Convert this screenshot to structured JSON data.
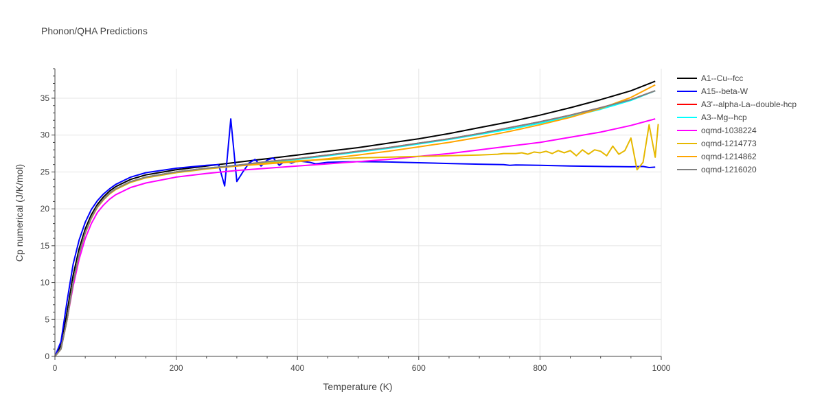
{
  "chart_data": {
    "type": "line",
    "title": "Phonon/QHA Predictions",
    "xlabel": "Temperature (K)",
    "ylabel": "Cp numerical (J/K/mol)",
    "xlim": [
      0,
      1000
    ],
    "ylim": [
      0,
      39
    ],
    "x_ticks": [
      0,
      200,
      400,
      600,
      800,
      1000
    ],
    "y_ticks": [
      0,
      5,
      10,
      15,
      20,
      25,
      30,
      35
    ],
    "grid": true,
    "legend_position": "right",
    "series": [
      {
        "name": "A1--Cu--fcc",
        "color": "#000000",
        "points": [
          [
            0,
            0
          ],
          [
            10,
            1.5
          ],
          [
            20,
            6
          ],
          [
            30,
            11
          ],
          [
            40,
            14.6
          ],
          [
            50,
            17.3
          ],
          [
            60,
            19.2
          ],
          [
            70,
            20.6
          ],
          [
            80,
            21.6
          ],
          [
            90,
            22.4
          ],
          [
            100,
            23.0
          ],
          [
            125,
            24.0
          ],
          [
            150,
            24.6
          ],
          [
            200,
            25.3
          ],
          [
            250,
            25.8
          ],
          [
            300,
            26.3
          ],
          [
            350,
            26.8
          ],
          [
            400,
            27.3
          ],
          [
            450,
            27.8
          ],
          [
            500,
            28.3
          ],
          [
            550,
            28.9
          ],
          [
            600,
            29.5
          ],
          [
            650,
            30.2
          ],
          [
            700,
            31.0
          ],
          [
            750,
            31.8
          ],
          [
            800,
            32.7
          ],
          [
            850,
            33.7
          ],
          [
            900,
            34.8
          ],
          [
            950,
            36.0
          ],
          [
            990,
            37.3
          ]
        ]
      },
      {
        "name": "A15--beta-W",
        "color": "#0000ff",
        "points": [
          [
            0,
            0
          ],
          [
            10,
            2
          ],
          [
            20,
            7.5
          ],
          [
            30,
            12.5
          ],
          [
            40,
            15.8
          ],
          [
            50,
            18.2
          ],
          [
            60,
            19.9
          ],
          [
            70,
            21.1
          ],
          [
            80,
            22.0
          ],
          [
            90,
            22.7
          ],
          [
            100,
            23.3
          ],
          [
            125,
            24.3
          ],
          [
            150,
            24.9
          ],
          [
            200,
            25.5
          ],
          [
            250,
            25.9
          ],
          [
            270,
            26.0
          ],
          [
            280,
            23.1
          ],
          [
            290,
            32.2
          ],
          [
            300,
            23.7
          ],
          [
            310,
            25.0
          ],
          [
            320,
            26.2
          ],
          [
            330,
            26.7
          ],
          [
            340,
            25.8
          ],
          [
            350,
            26.6
          ],
          [
            360,
            26.9
          ],
          [
            370,
            25.9
          ],
          [
            380,
            26.5
          ],
          [
            390,
            26.2
          ],
          [
            400,
            26.5
          ],
          [
            420,
            26.3
          ],
          [
            430,
            26.1
          ],
          [
            450,
            26.3
          ],
          [
            500,
            26.4
          ],
          [
            550,
            26.35
          ],
          [
            600,
            26.25
          ],
          [
            650,
            26.15
          ],
          [
            700,
            26.05
          ],
          [
            740,
            26.0
          ],
          [
            750,
            25.9
          ],
          [
            760,
            25.95
          ],
          [
            800,
            25.9
          ],
          [
            850,
            25.8
          ],
          [
            900,
            25.75
          ],
          [
            950,
            25.7
          ],
          [
            970,
            25.75
          ],
          [
            980,
            25.6
          ],
          [
            990,
            25.65
          ]
        ]
      },
      {
        "name": "A3'--alpha-La--double-hcp",
        "color": "#ff0000",
        "points": [
          [
            0,
            0
          ],
          [
            10,
            1
          ],
          [
            20,
            5
          ],
          [
            30,
            10
          ],
          [
            40,
            13.9
          ],
          [
            50,
            16.8
          ],
          [
            60,
            18.8
          ],
          [
            70,
            20.3
          ],
          [
            80,
            21.3
          ],
          [
            90,
            22.1
          ],
          [
            100,
            22.7
          ],
          [
            125,
            23.7
          ],
          [
            150,
            24.3
          ],
          [
            200,
            25.0
          ],
          [
            250,
            25.5
          ],
          [
            300,
            25.9
          ],
          [
            350,
            26.4
          ],
          [
            400,
            26.8
          ],
          [
            450,
            27.3
          ],
          [
            500,
            27.8
          ],
          [
            550,
            28.3
          ],
          [
            600,
            28.9
          ],
          [
            650,
            29.5
          ],
          [
            700,
            30.2
          ],
          [
            750,
            31.0
          ],
          [
            800,
            31.8
          ],
          [
            850,
            32.7
          ],
          [
            900,
            33.7
          ],
          [
            950,
            34.8
          ],
          [
            990,
            36.0
          ]
        ]
      },
      {
        "name": "A3--Mg--hcp",
        "color": "#00ffff",
        "points": [
          [
            0,
            0
          ],
          [
            10,
            1
          ],
          [
            20,
            5
          ],
          [
            30,
            10
          ],
          [
            40,
            13.9
          ],
          [
            50,
            16.8
          ],
          [
            60,
            18.8
          ],
          [
            70,
            20.3
          ],
          [
            80,
            21.3
          ],
          [
            90,
            22.1
          ],
          [
            100,
            22.7
          ],
          [
            125,
            23.7
          ],
          [
            150,
            24.3
          ],
          [
            200,
            25.0
          ],
          [
            250,
            25.5
          ],
          [
            300,
            25.9
          ],
          [
            350,
            26.3
          ],
          [
            400,
            26.7
          ],
          [
            450,
            27.2
          ],
          [
            500,
            27.7
          ],
          [
            550,
            28.2
          ],
          [
            600,
            28.8
          ],
          [
            650,
            29.4
          ],
          [
            700,
            30.1
          ],
          [
            750,
            30.8
          ],
          [
            800,
            31.6
          ],
          [
            850,
            32.5
          ],
          [
            900,
            33.5
          ],
          [
            950,
            34.7
          ],
          [
            990,
            36.0
          ]
        ]
      },
      {
        "name": "oqmd-1038224",
        "color": "#ff00ff",
        "points": [
          [
            0,
            0
          ],
          [
            10,
            1
          ],
          [
            20,
            5
          ],
          [
            30,
            9.5
          ],
          [
            40,
            13.2
          ],
          [
            50,
            16.0
          ],
          [
            60,
            18.0
          ],
          [
            70,
            19.5
          ],
          [
            80,
            20.5
          ],
          [
            90,
            21.3
          ],
          [
            100,
            21.9
          ],
          [
            125,
            22.9
          ],
          [
            150,
            23.5
          ],
          [
            200,
            24.3
          ],
          [
            250,
            24.8
          ],
          [
            300,
            25.2
          ],
          [
            350,
            25.5
          ],
          [
            400,
            25.8
          ],
          [
            450,
            26.1
          ],
          [
            500,
            26.4
          ],
          [
            550,
            26.7
          ],
          [
            600,
            27.1
          ],
          [
            650,
            27.5
          ],
          [
            700,
            28.0
          ],
          [
            750,
            28.5
          ],
          [
            800,
            29.0
          ],
          [
            850,
            29.7
          ],
          [
            900,
            30.4
          ],
          [
            950,
            31.3
          ],
          [
            990,
            32.2
          ]
        ]
      },
      {
        "name": "oqmd-1214773",
        "color": "#e6b800",
        "points": [
          [
            0,
            0
          ],
          [
            10,
            1
          ],
          [
            20,
            5
          ],
          [
            30,
            10
          ],
          [
            40,
            13.9
          ],
          [
            50,
            16.7
          ],
          [
            60,
            18.7
          ],
          [
            70,
            20.2
          ],
          [
            80,
            21.2
          ],
          [
            90,
            22.0
          ],
          [
            100,
            22.6
          ],
          [
            125,
            23.6
          ],
          [
            150,
            24.2
          ],
          [
            200,
            24.9
          ],
          [
            250,
            25.4
          ],
          [
            300,
            25.8
          ],
          [
            350,
            26.2
          ],
          [
            400,
            26.5
          ],
          [
            450,
            26.7
          ],
          [
            500,
            26.9
          ],
          [
            550,
            27.0
          ],
          [
            600,
            27.1
          ],
          [
            650,
            27.2
          ],
          [
            700,
            27.3
          ],
          [
            730,
            27.4
          ],
          [
            740,
            27.5
          ],
          [
            760,
            27.5
          ],
          [
            770,
            27.6
          ],
          [
            780,
            27.4
          ],
          [
            790,
            27.7
          ],
          [
            800,
            27.6
          ],
          [
            810,
            27.8
          ],
          [
            820,
            27.5
          ],
          [
            830,
            27.9
          ],
          [
            840,
            27.6
          ],
          [
            850,
            27.9
          ],
          [
            860,
            27.2
          ],
          [
            870,
            28.0
          ],
          [
            880,
            27.4
          ],
          [
            890,
            28.0
          ],
          [
            900,
            27.8
          ],
          [
            910,
            27.2
          ],
          [
            920,
            28.5
          ],
          [
            930,
            27.4
          ],
          [
            940,
            27.9
          ],
          [
            950,
            29.6
          ],
          [
            960,
            25.3
          ],
          [
            970,
            26.3
          ],
          [
            980,
            31.4
          ],
          [
            990,
            27.0
          ],
          [
            995,
            31.5
          ]
        ]
      },
      {
        "name": "oqmd-1214862",
        "color": "#ffa500",
        "points": [
          [
            0,
            0
          ],
          [
            10,
            1
          ],
          [
            20,
            5
          ],
          [
            30,
            10
          ],
          [
            40,
            13.9
          ],
          [
            50,
            16.8
          ],
          [
            60,
            18.8
          ],
          [
            70,
            20.3
          ],
          [
            80,
            21.3
          ],
          [
            90,
            22.1
          ],
          [
            100,
            22.7
          ],
          [
            125,
            23.7
          ],
          [
            150,
            24.3
          ],
          [
            200,
            25.0
          ],
          [
            250,
            25.5
          ],
          [
            300,
            25.8
          ],
          [
            350,
            26.1
          ],
          [
            400,
            26.4
          ],
          [
            450,
            26.8
          ],
          [
            500,
            27.3
          ],
          [
            550,
            27.8
          ],
          [
            600,
            28.4
          ],
          [
            650,
            29.0
          ],
          [
            700,
            29.7
          ],
          [
            750,
            30.5
          ],
          [
            800,
            31.4
          ],
          [
            850,
            32.4
          ],
          [
            900,
            33.6
          ],
          [
            950,
            35.1
          ],
          [
            990,
            36.8
          ]
        ]
      },
      {
        "name": "oqmd-1216020",
        "color": "#808080",
        "points": [
          [
            0,
            0
          ],
          [
            10,
            1
          ],
          [
            20,
            5
          ],
          [
            30,
            10
          ],
          [
            40,
            13.9
          ],
          [
            50,
            16.8
          ],
          [
            60,
            18.8
          ],
          [
            70,
            20.3
          ],
          [
            80,
            21.3
          ],
          [
            90,
            22.1
          ],
          [
            100,
            22.7
          ],
          [
            125,
            23.7
          ],
          [
            150,
            24.3
          ],
          [
            200,
            25.0
          ],
          [
            250,
            25.5
          ],
          [
            300,
            25.9
          ],
          [
            350,
            26.4
          ],
          [
            400,
            26.8
          ],
          [
            450,
            27.3
          ],
          [
            500,
            27.8
          ],
          [
            550,
            28.3
          ],
          [
            600,
            28.9
          ],
          [
            650,
            29.5
          ],
          [
            700,
            30.2
          ],
          [
            750,
            31.0
          ],
          [
            800,
            31.8
          ],
          [
            850,
            32.7
          ],
          [
            900,
            33.7
          ],
          [
            950,
            34.8
          ],
          [
            990,
            36.0
          ]
        ]
      }
    ]
  }
}
